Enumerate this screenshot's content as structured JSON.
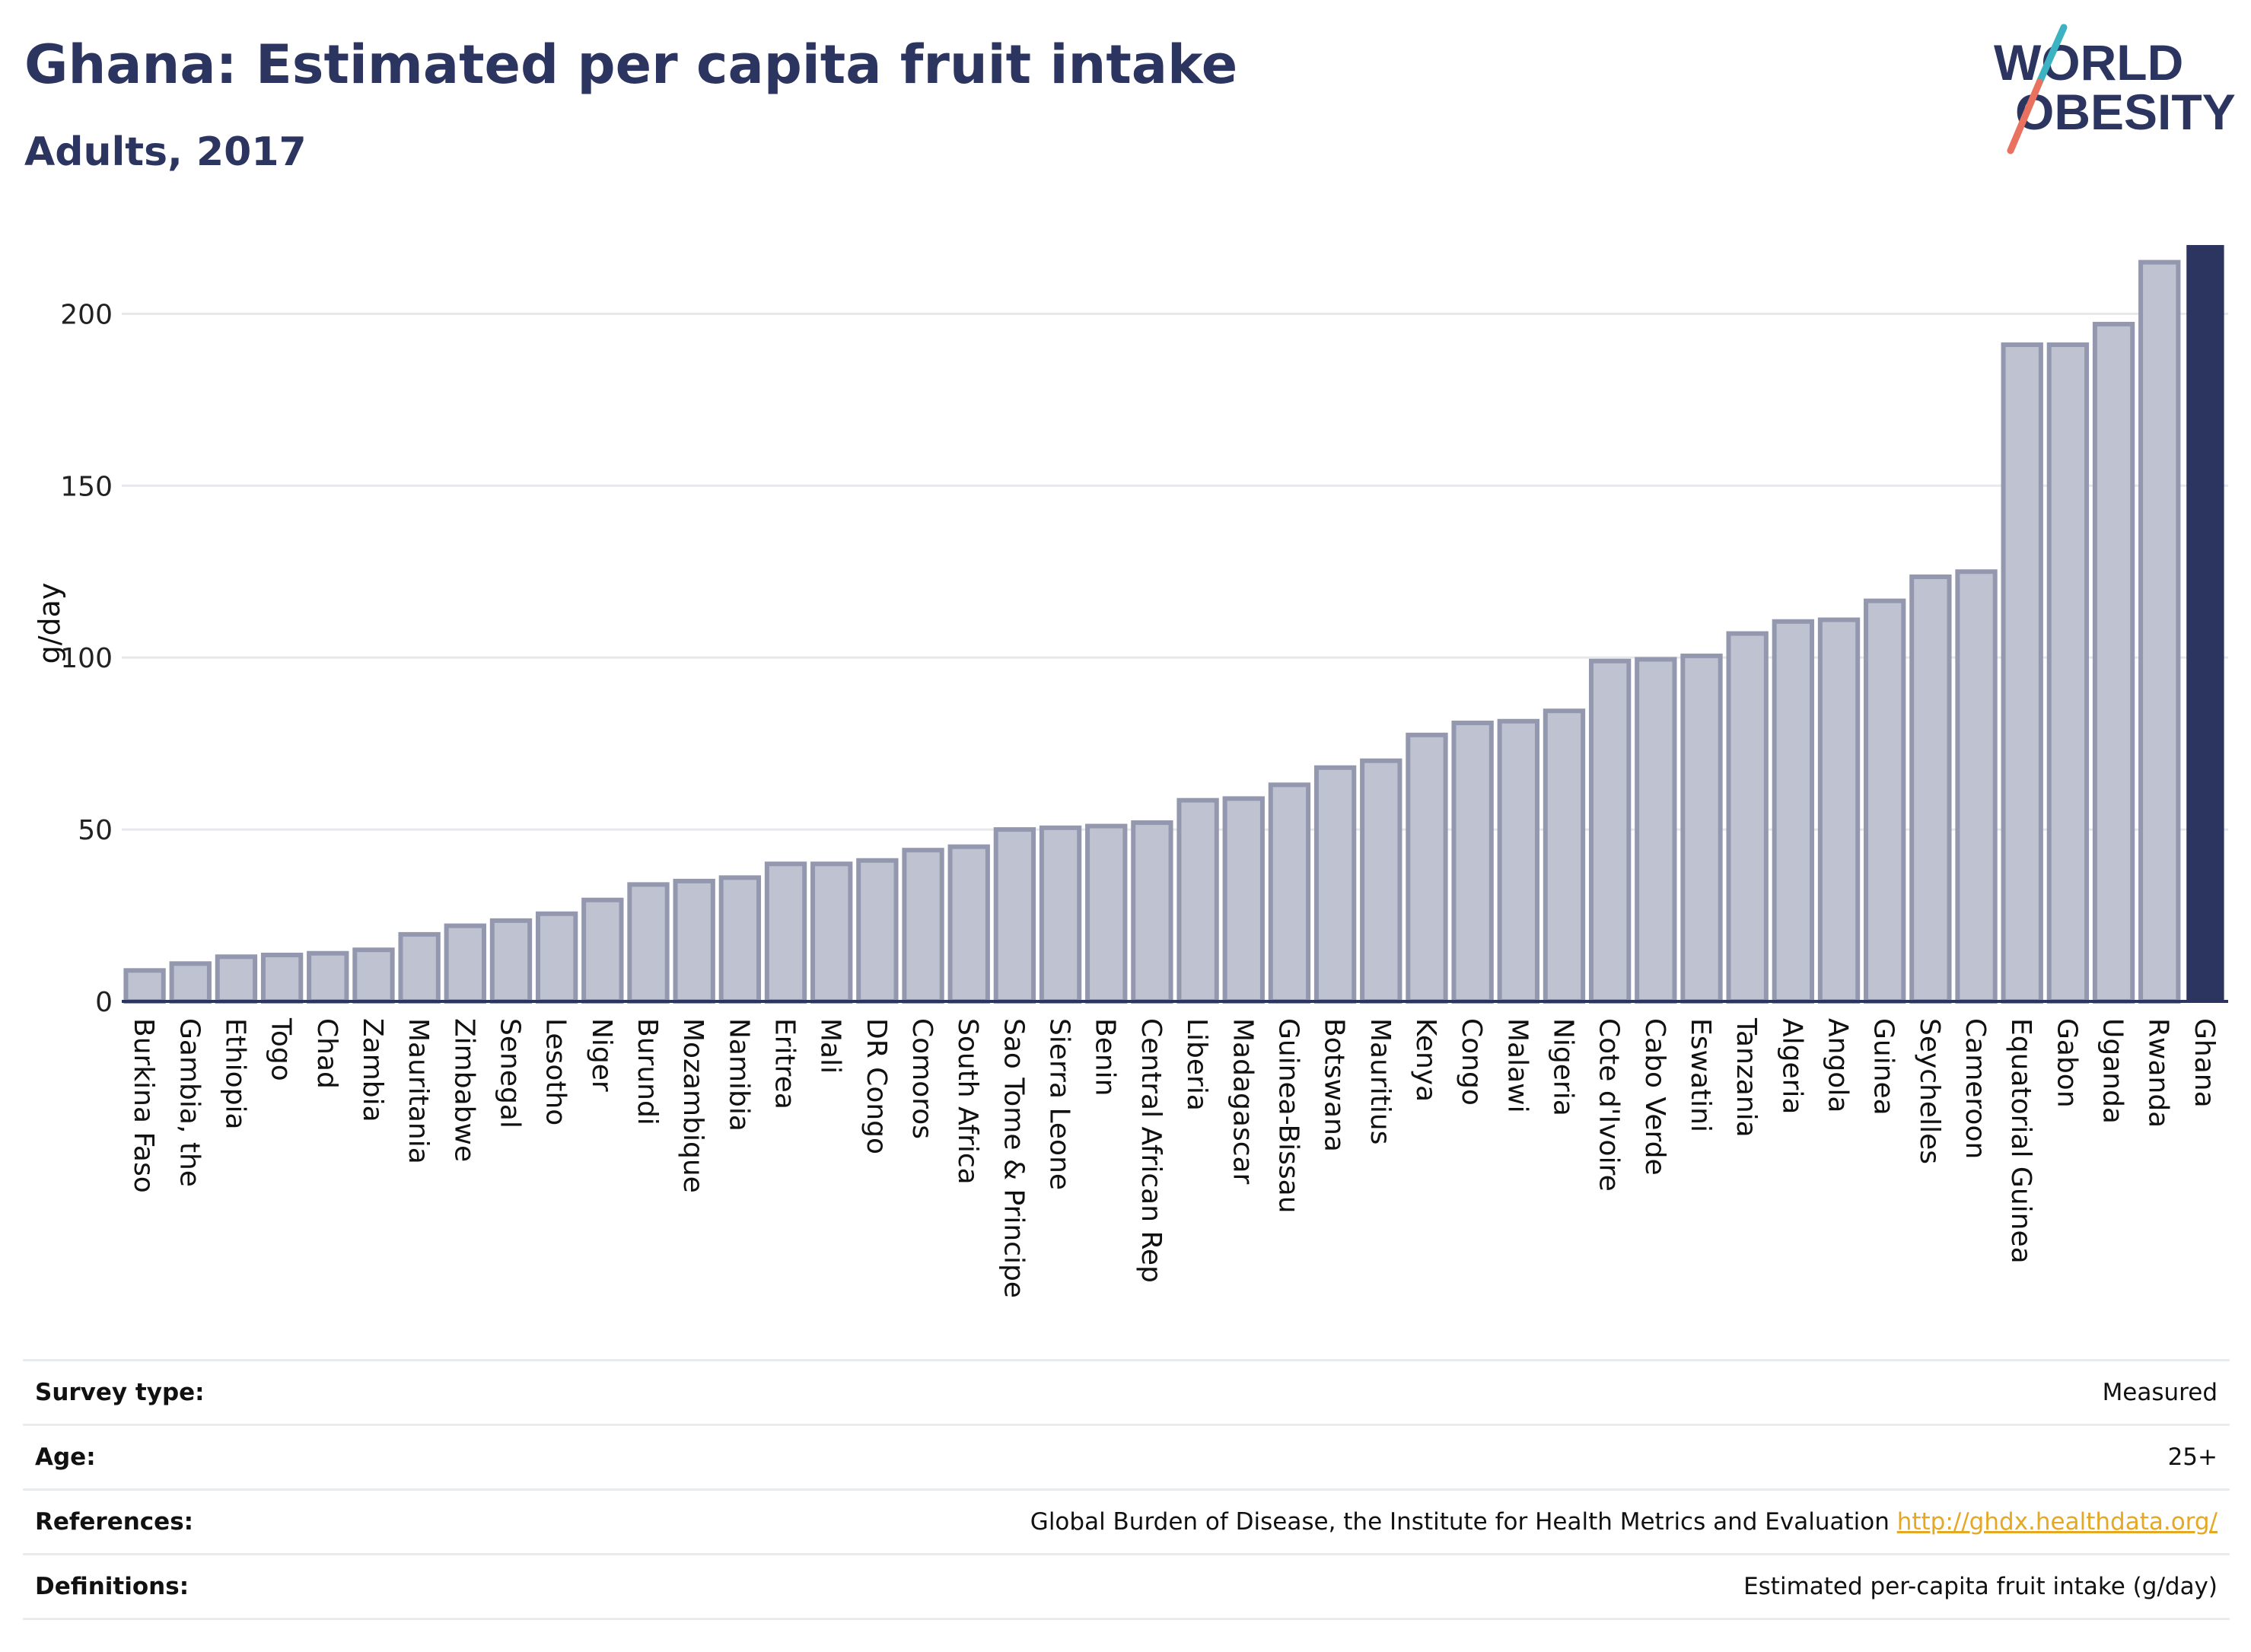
{
  "header": {
    "title": "Ghana: Estimated per capita fruit intake",
    "subtitle": "Adults, 2017"
  },
  "logo": {
    "line1": "WORLD",
    "line2": "OBESITY",
    "colors": {
      "text": "#2c3560",
      "slash_teal": "#3bb3c3",
      "slash_coral": "#e8725f"
    }
  },
  "chart_data": {
    "type": "bar",
    "ylabel": "g/day",
    "ylim": [
      0,
      220
    ],
    "yticks": [
      0,
      50,
      100,
      150,
      200
    ],
    "grid": true,
    "highlight": "Ghana",
    "colors": {
      "bar": "#bfc2d0",
      "bar_edge": "#9498af",
      "highlight": "#2c3560",
      "grid": "#e6e8ec"
    },
    "categories": [
      "Burkina Faso",
      "Gambia, the",
      "Ethiopia",
      "Togo",
      "Chad",
      "Zambia",
      "Mauritania",
      "Zimbabwe",
      "Senegal",
      "Lesotho",
      "Niger",
      "Burundi",
      "Mozambique",
      "Namibia",
      "Eritrea",
      "Mali",
      "DR Congo",
      "Comoros",
      "South Africa",
      "Sao Tome & Principe",
      "Sierra Leone",
      "Benin",
      "Central African Rep",
      "Liberia",
      "Madagascar",
      "Guinea-Bissau",
      "Botswana",
      "Mauritius",
      "Kenya",
      "Congo",
      "Malawi",
      "Nigeria",
      "Cote d'Ivoire",
      "Cabo Verde",
      "Eswatini",
      "Tanzania",
      "Algeria",
      "Angola",
      "Guinea",
      "Seychelles",
      "Cameroon",
      "Equatorial Guinea",
      "Gabon",
      "Uganda",
      "Rwanda",
      "Ghana"
    ],
    "values": [
      9,
      11,
      13,
      13.5,
      14,
      15,
      19.5,
      22,
      23.5,
      25.5,
      29.5,
      34,
      35,
      36,
      40,
      40,
      41,
      44,
      45,
      50,
      50.5,
      51,
      52,
      58.5,
      59,
      63,
      68,
      70,
      77.5,
      81,
      81.5,
      84.5,
      99,
      99.5,
      100.5,
      107,
      110.5,
      111,
      116.5,
      123.5,
      125,
      191,
      191,
      197,
      215,
      220
    ]
  },
  "meta": {
    "survey_type_label": "Survey type:",
    "survey_type_value": "Measured",
    "age_label": "Age:",
    "age_value": "25+",
    "references_label": "References:",
    "references_text": "Global Burden of Disease, the Institute for Health Metrics and Evaluation",
    "references_link": "http://ghdx.healthdata.org/",
    "definitions_label": "Definitions:",
    "definitions_value": "Estimated per-capita fruit intake (g/day)"
  }
}
